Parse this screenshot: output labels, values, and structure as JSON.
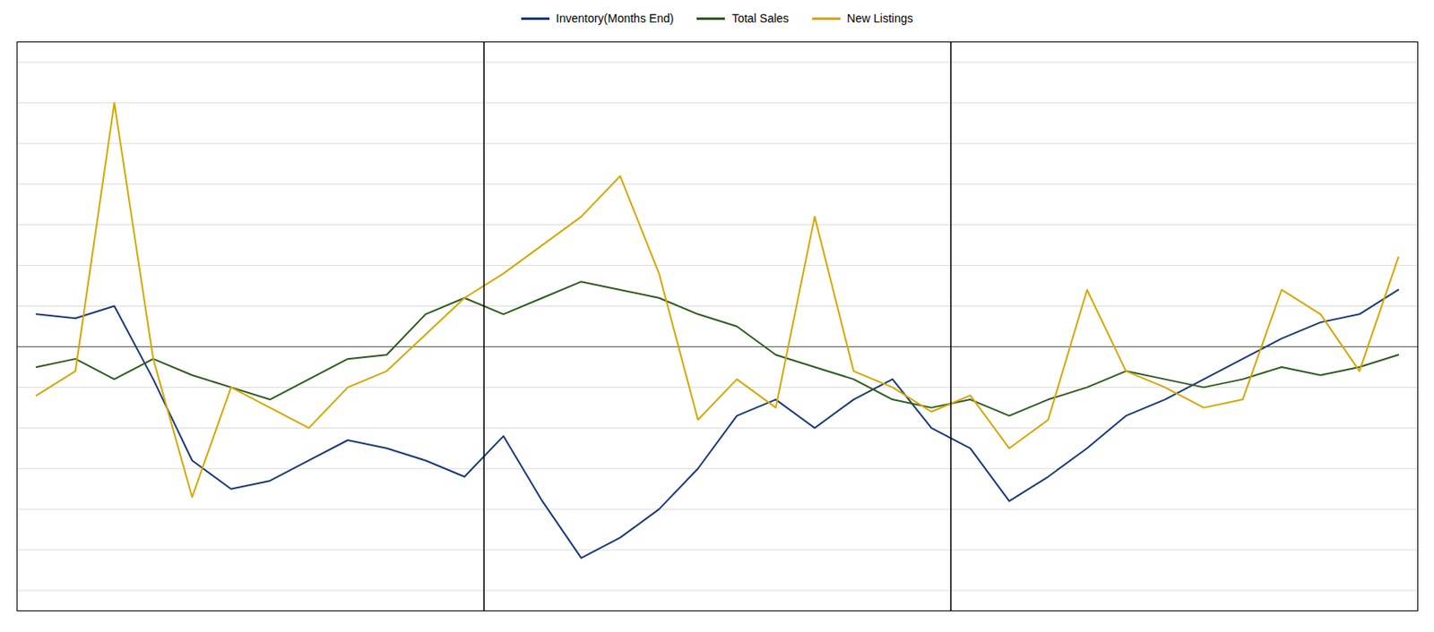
{
  "chart_data": {
    "type": "line",
    "x": [
      0,
      1,
      2,
      3,
      4,
      5,
      6,
      7,
      8,
      9,
      10,
      11,
      12,
      13,
      14,
      15,
      16,
      17,
      18,
      19,
      20,
      21,
      22,
      23,
      24,
      25,
      26,
      27,
      28,
      29,
      30,
      31,
      32,
      33,
      34,
      35
    ],
    "series": [
      {
        "name": "Inventory(Months End)",
        "color": "#1a3a7a",
        "values": [
          8,
          7,
          10,
          -8,
          -28,
          -35,
          -33,
          -28,
          -23,
          -25,
          -28,
          -32,
          -22,
          -38,
          -52,
          -47,
          -40,
          -30,
          -17,
          -13,
          -20,
          -13,
          -8,
          -20,
          -25,
          -38,
          -32,
          -25,
          -17,
          -13,
          -8,
          -3,
          2,
          6,
          8,
          14
        ]
      },
      {
        "name": "Total Sales",
        "color": "#2d5c1e",
        "values": [
          -5,
          -3,
          -8,
          -3,
          -7,
          -10,
          -13,
          -8,
          -3,
          -2,
          8,
          12,
          8,
          12,
          16,
          14,
          12,
          8,
          5,
          -2,
          -5,
          -8,
          -13,
          -15,
          -13,
          -17,
          -13,
          -10,
          -6,
          -8,
          -10,
          -8,
          -5,
          -7,
          -5,
          -2
        ]
      },
      {
        "name": "New Listings",
        "color": "#d4a800",
        "values": [
          -12,
          -6,
          60,
          -3,
          -37,
          -10,
          -15,
          -20,
          -10,
          -6,
          3,
          12,
          18,
          25,
          32,
          42,
          18,
          -18,
          -8,
          -15,
          32,
          -6,
          -10,
          -16,
          -12,
          -25,
          -18,
          14,
          -6,
          -10,
          -15,
          -13,
          14,
          8,
          -6,
          22
        ]
      }
    ],
    "xlim": [
      -0.5,
      35.5
    ],
    "ylim": [
      -65,
      75
    ],
    "yticks": [
      -60,
      -50,
      -40,
      -30,
      -20,
      -10,
      0,
      10,
      20,
      30,
      40,
      50,
      60,
      70
    ],
    "vlines": [
      11.5,
      23.5
    ],
    "hlines": [
      0
    ],
    "grid": true,
    "tick_labels": false,
    "legend": "top"
  }
}
